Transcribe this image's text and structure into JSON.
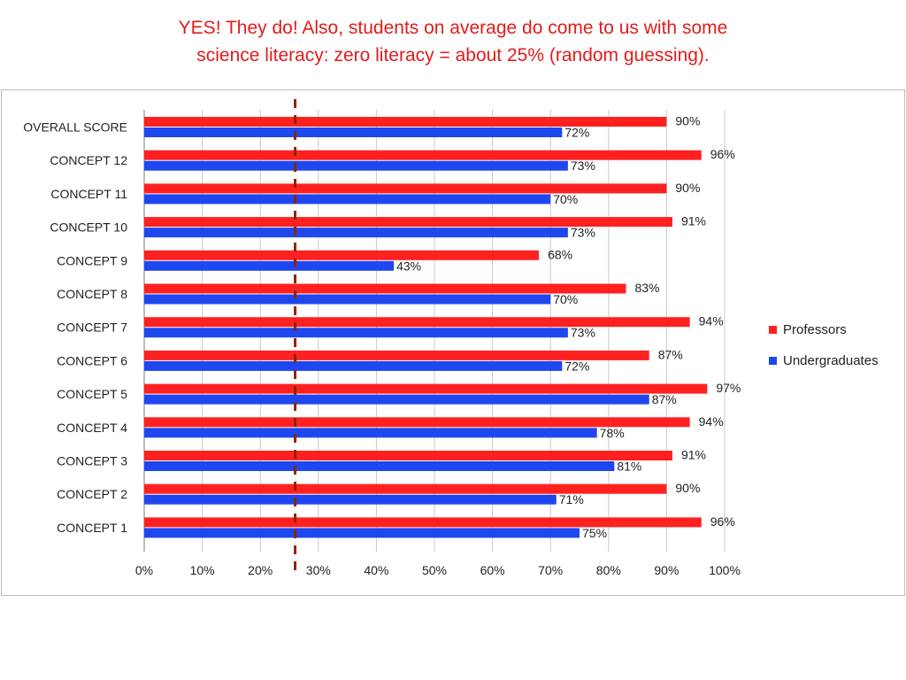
{
  "title": {
    "line1": "YES! They do! Also, students on average do come to us with some",
    "line2": "science literacy: zero literacy = about 25% (random guessing)."
  },
  "colors": {
    "professors": "#ff2020",
    "undergraduates": "#1f47f0",
    "reference_line": "#8b2500",
    "title_text": "#e31b1b"
  },
  "legend": {
    "professors": "Professors",
    "undergraduates": "Undergraduates"
  },
  "chart_data": {
    "type": "bar",
    "orientation": "horizontal",
    "categories": [
      "OVERALL SCORE",
      "CONCEPT 12",
      "CONCEPT 11",
      "CONCEPT 10",
      "CONCEPT 9",
      "CONCEPT 8",
      "CONCEPT 7",
      "CONCEPT 6",
      "CONCEPT 5",
      "CONCEPT 4",
      "CONCEPT 3",
      "CONCEPT 2",
      "CONCEPT 1"
    ],
    "series": [
      {
        "name": "Professors",
        "color": "#ff2020",
        "values": [
          90,
          96,
          90,
          91,
          68,
          83,
          94,
          87,
          97,
          94,
          91,
          90,
          96
        ]
      },
      {
        "name": "Undergraduates",
        "color": "#1f47f0",
        "values": [
          72,
          73,
          70,
          73,
          43,
          70,
          73,
          72,
          87,
          78,
          81,
          71,
          75
        ]
      }
    ],
    "xlim": [
      0,
      100
    ],
    "x_ticks": [
      "0%",
      "10%",
      "20%",
      "30%",
      "40%",
      "50%",
      "60%",
      "70%",
      "80%",
      "90%",
      "100%"
    ],
    "value_suffix": "%",
    "reference_line_value": 26,
    "reference_line_style": "dashed",
    "grid": "vertical",
    "legend_position": "right"
  }
}
